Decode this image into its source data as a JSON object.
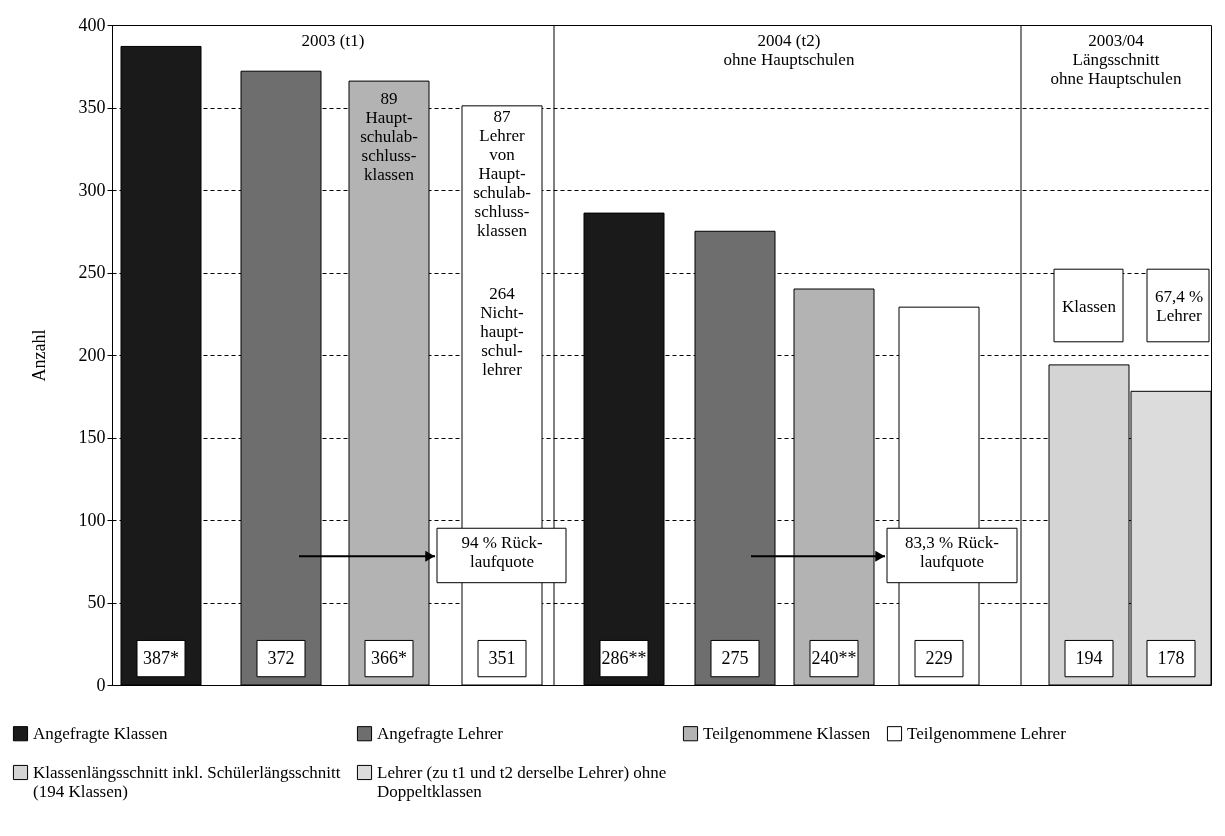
{
  "chart_data": {
    "type": "bar",
    "ylabel": "Anzahl",
    "ylim": [
      0,
      400
    ],
    "yticks": [
      0,
      50,
      100,
      150,
      200,
      250,
      300,
      350,
      400
    ],
    "grid": "y",
    "legend": "bottom",
    "tick_labels": "y",
    "categories": [
      null,
      null,
      null,
      null,
      null,
      null,
      null,
      null,
      null,
      null
    ],
    "series": [
      {
        "name": "Angefragte Klassen",
        "color": "#1a1a1a",
        "values": [
          387,
          null,
          null,
          null,
          286,
          null,
          null,
          null,
          null,
          null
        ],
        "value_labels": [
          "387*",
          null,
          null,
          null,
          "286**",
          null,
          null,
          null,
          null,
          null
        ]
      },
      {
        "name": "Angefragte Lehrer",
        "color": "#6e6e6e",
        "values": [
          null,
          372,
          null,
          null,
          null,
          275,
          null,
          null,
          null,
          null
        ],
        "value_labels": [
          null,
          "372",
          null,
          null,
          null,
          "275",
          null,
          null,
          null,
          null
        ]
      },
      {
        "name": "Teilgenommene Klassen",
        "color": "#b3b3b3",
        "values": [
          null,
          null,
          366,
          null,
          null,
          null,
          240,
          null,
          null,
          null
        ],
        "value_labels": [
          null,
          null,
          "366*",
          null,
          null,
          null,
          "240**",
          null,
          null,
          null
        ]
      },
      {
        "name": "Teilgenommene Lehrer",
        "color": "#ffffff",
        "values": [
          null,
          null,
          null,
          351,
          null,
          null,
          null,
          229,
          null,
          null
        ],
        "value_labels": [
          null,
          null,
          null,
          "351",
          null,
          null,
          null,
          "229",
          null,
          null
        ]
      },
      {
        "name": "Klassenlängsschnitt inkl. Schülerlängsschnitt (194 Klassen)",
        "color": "#d4d4d4",
        "values": [
          null,
          null,
          null,
          null,
          null,
          null,
          null,
          null,
          194,
          null
        ],
        "value_labels": [
          null,
          null,
          null,
          null,
          null,
          null,
          null,
          null,
          "194",
          null
        ]
      },
      {
        "name": "Lehrer (zu t1 und t2 derselbe Lehrer) ohne Doppeltklassen",
        "color": "#dcdcdc",
        "values": [
          null,
          null,
          null,
          null,
          null,
          null,
          null,
          null,
          null,
          178
        ],
        "value_labels": [
          null,
          null,
          null,
          null,
          null,
          null,
          null,
          null,
          null,
          "178"
        ]
      }
    ],
    "annotations": [
      "2003 (t1)",
      "2004 (t2)\nohne Hauptschulen",
      "2003/04\nLängsschnitt\nohne Hauptschulen",
      "89\nHaupt-\nschulab-\nschluss-\nklassen",
      "87\nLehrer\nvon\nHaupt-\nschulab-\nschluss-\nklassen",
      "264\nNicht-\nhaupt-\nschul-\nlehrer",
      "94 % Rück-\nlaufquote",
      "83,3 % Rück-\nlaufquote",
      "Klassen",
      "67,4 %\nLehrer"
    ]
  }
}
